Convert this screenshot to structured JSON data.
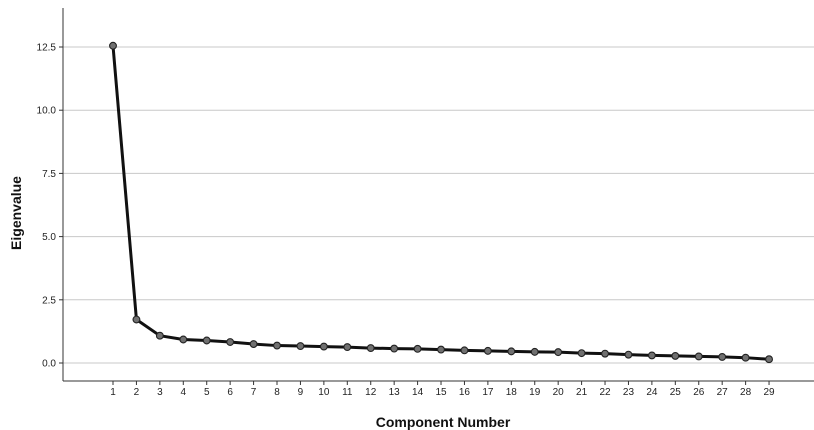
{
  "chart_data": {
    "type": "line",
    "title": "",
    "xlabel": "Component Number",
    "ylabel": "Eigenvalue",
    "categories": [
      "1",
      "2",
      "3",
      "4",
      "5",
      "6",
      "7",
      "8",
      "9",
      "10",
      "11",
      "12",
      "13",
      "14",
      "15",
      "16",
      "17",
      "18",
      "19",
      "20",
      "21",
      "22",
      "23",
      "24",
      "25",
      "26",
      "27",
      "28",
      "29"
    ],
    "series": [
      {
        "values": [
          12.55,
          1.72,
          1.08,
          0.93,
          0.89,
          0.83,
          0.75,
          0.69,
          0.67,
          0.65,
          0.63,
          0.59,
          0.57,
          0.56,
          0.53,
          0.5,
          0.48,
          0.46,
          0.44,
          0.43,
          0.39,
          0.37,
          0.33,
          0.3,
          0.28,
          0.26,
          0.24,
          0.21,
          0.15
        ]
      }
    ],
    "ylim": [
      -0.75,
      14.0
    ],
    "yticks": [
      0.0,
      2.5,
      5.0,
      7.5,
      10.0,
      12.5
    ],
    "ytick_labels": [
      "0.0",
      "2.5",
      "5.0",
      "7.5",
      "10.0",
      "12.5"
    ],
    "grid": true,
    "line_color": "#111111",
    "marker_color": "#707070",
    "grid_color": "#c8c8c8"
  }
}
